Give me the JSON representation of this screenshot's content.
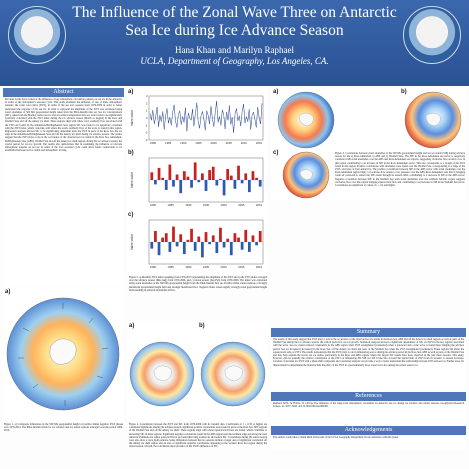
{
  "poster": {
    "title": "The Influence of the Zonal Wave Three on Antarctic Sea Ice during Ice Advance Season",
    "authors": "Hana Khan and Marilyn Raphael",
    "affiliation": "UCLA, Department of Geography, Los Angeles, CA."
  },
  "abstract": {
    "heading": "Abstract",
    "text": "Previous works have looked at the influence of key atmospheric circulation patterns on sea ice in the Antarctic in terms of the atmosphere's seasonal cycle. This study examines the influence of one of these atmospheric patterns, the zonal wave three (ZW3), in terms of the sea ice's seasons from 1979-2009 in order to better understand the response of the sea ice. In order to represent the amplitude of the ZW3 was calculated using zonal anomalies of 500 hPa geopotential height taken from the ERA-Interim data set. Sea ice concentrations (SIC), taken from the Bradley Center sea ice and sea surface temperature data set, were found to be significantly positively correlated with the ZW3 index during the ice advance season (March to August) in the Ross and Weddell Seas and off the Amery ice shelf. These regions align with where cold, southerly flow associated with the ZW3 are found. In the Amundsen-Bellingshausen Seas region SIC was found to be negatively correlated with the ZW3 index, which coincides with where the warm, northerly flow of the wave is found in this region. Regression analysis showed SIC to be significantly dependent upon the ZW3 in parts of the Ross Sea, the ice edge in the Amundsen-Bellingshausen Seas and off the Amery ice shelf during ice advance season. The results suggest that the ZW3 plays a role in the occurrence of the observed sea ice trends in the Ross Sea, Amundsen-Bellingshausen Seas (ABS), Weddell Sea and off the Amery ice shelf regions during the ice advance season, the crucial period for sea ice growth. The results also demonstrate that in examining the influence of relevant atmospheric patterns on sea ice in terms of the ice's seasonal cycle could allow future connections to be established between sea ice trends and atmospheric forcing."
  },
  "figure1": {
    "label": "a)",
    "caption": "Figure 1. a) Composite differences in the 500 hPa geopotential height of positive minus negative ZW3 phases over 1979-2014. The ERA-Interim winds for ice advance and ice retreat seasons averaged over the period 1980-2013."
  },
  "figure2": {
    "labels": [
      "a)",
      "b)",
      "c)"
    ],
    "caption": "Figure 2. a) Monthly ZW3 index spanning from 1979-2013 representing the amplitude of the ZW3 and b) the ZW3 index averaged over the advance season (Mar-Aug) from 1979-2009, and c) retreat season (Sep-Feb) from 1979-2009. The index was calculated using zonal anomalies at the 500 hPa geopotential height from the ERA-Interim data set. Positive index values indicate a strongly meridional geopotential height field and stronger meridional flow. Negative index values signify strongly zonal geopotential height field resulting in reduced meridional airflow.",
    "ylabel": "Index value"
  },
  "figure3": {
    "labels": [
      "a)",
      "b)",
      "c)"
    ],
    "caption": "Figure 3. Correlations between zonal anomalies at the 500 hPa geopotential height and sea ice extent (SIE) during advance season for the a) Ross-Amundsen b) ABS and c) Weddell Seas. The SIE in the Ross-Amundsen sea sector is negatively correlated with zonal anomalies over the ABS and Ross-Amundsen sea regions, suggesting clockwise flow around a low in this region contributing to an increase in SIE in the Ross-Amundsen sector. This also corresponds to a trough of the ZW3 found in this region. Positive correlations with anomalies were found over the Weddell Sea, corresponding to a ridge of the ZW3, and parts of East Antarctica. The positive correlations between SIE in the ABS sector with zonal anomalies over the Ross-Amundsen region imply a clockwise flow around a low pressure over the ABS-Ross-Amundsen seas that is bringing warm air poleward to reduce the SIE extent through its eastern limb, contributing to a decrease in SIE in the ABS sector. Negative correlation between SIE in the Weddell Sea with zonal anomalies over the southern Atlantic region suggests clockwise flow over this region bringing equatorward flow and contributing to an increase in SIE in the Weddell Sea sector. Correlations are significant at values of r ≥ 0.4 and higher."
  },
  "figure4": {
    "labels": [
      "a)",
      "b)"
    ],
    "caption": "Figure 4. Correlations between the ZW3 and SIC from 1979-2009 with its trended data. Coefficients of r ≥ 0.35 or higher are considered significant. During the advance season, significant positive correlations were found in parts of the Ross Sea, SIW regions of the Weddell Sea and off the Amery ice shelf. These regions align with where equatorward flows are found, which contribute to increasing SIC in these regions. Significant negative correlations found in the ABS region near the northern edge and along the west Antarctic Peninsula are where poleward flows are found that bring warmer air and reduce SIC. Correlations during the retreat season were also show a trace from patterns. Some differences between the two seasons include a larger area of significant correlation off the Amery ice shelf region and an area of significant negative correlations appearing in the western Ross Sea region during the retreat season. Overall, the correlations show presence of the ZW3's influence on SIC."
  },
  "summary": {
    "heading": "Summary",
    "text": "The results of this study suggest that ZW3 plays a role in the occurrence of the observed sea ice trends in the Ross Sea, ABS and off the Amery ice shelf regions as well as parts of the Weddell Sea during the ice advance season, the critical period for sea ice growth. Statistical analyses showed a significant dependence of SIC on ZW3 in the key regions associated with the wave. Sea ice extent reduced consistently in the ABS region when ZW3 strengthened (weakened) when a poleward arm of the wave is found there bringing the advance period. Sea ice increased (decreased) in the Ross Sea, off the Amery ice shelf and parts of the Weddell Sea when the ZW3 strengthened (weakened). These regions fall under the equatorward arms of ZW3. The results demonstrate that the ZW3 plays a role in influencing sea ice during the advance period in the Ross Sea, ABS as well as parts of the Weddell Sea and may help explain the recent sea ice trends, particularly in the Ross and ABS regions where the largest SIC trends have been observed in the past three decades. This study, however, did not quantify the relative contribution of the ZW3 on influencing SIC/SIE nor did it take into account the spatial shift of ZW3 from its western to eastern locations. Creation of an index for ZW3 with a phase shift component and correlation analysis can provide a way to better understand the relationship between ZW3 and sea ice. Further areas for improvement in determining the index include the effect of the ZW3 in a predominantly more zonal wave also during the retreat season too."
  },
  "references": {
    "heading": "References",
    "text": "Raphael, M.N., & Hobbs, W. (2014). The influence of the large-scale atmospheric circulation on Antarctic sea ice during ice advance and retreat seasons. Geophysical Research Letters, 41, 5037–5045. doi:10.1002/2014GL060365"
  },
  "acknowledgements": {
    "heading": "Acknowledgements",
    "text": "The authors would like to thank Mark Zebrowski of the UCLA Geography Department for his assistance with this poster."
  },
  "colors": {
    "header_blue": "#2f5b9f",
    "section_blue": "#4f77b8",
    "positive_red": "#c8201e",
    "negative_blue": "#2d59b3"
  },
  "chart_data": [
    {
      "type": "line",
      "title": "",
      "ylabel": "Index value",
      "x_ticks": [
        "1980",
        "1985",
        "1990",
        "1995",
        "2000",
        "2005",
        "2010",
        "2015"
      ],
      "y_ticks": [
        "3",
        "2",
        "1",
        "0",
        "-1",
        "-2",
        "-3"
      ],
      "ylim": [
        -3,
        3
      ],
      "series": [
        {
          "values": [
            0.6,
            -0.3,
            1.1,
            -0.8,
            0.2,
            1.5,
            -1.2,
            0.4,
            -0.5,
            0.9,
            -1.6,
            0.3,
            1.3,
            -0.7,
            0.1,
            -1.0,
            0.8,
            1.8,
            -0.4,
            -1.3,
            0.5,
            1.0,
            -0.9,
            0.2,
            -0.6,
            1.4,
            -1.8,
            0.7,
            0.0,
            -0.3,
            1.2,
            -1.1,
            0.6,
            2.1,
            -0.5,
            -1.4,
            0.3,
            0.9,
            -0.2,
            -1.7,
            1.0,
            0.4,
            -0.8,
            1.6,
            -0.1,
            -1.2,
            0.7,
            2.3,
            -0.6,
            0.2,
            -1.0,
            1.1,
            0.5,
            -1.5,
            0.8,
            -0.3,
            1.7,
            -0.9,
            0.1,
            -2.0,
            0.6,
            1.3,
            -0.4,
            0.3,
            -1.1,
            0.9,
            1.9,
            -0.7,
            0.2,
            -0.5,
            1.2,
            -1.6,
            0.4,
            0.8,
            -0.2,
            -1.3,
            1.5,
            0.0,
            -0.8,
            2.0
          ]
        }
      ]
    },
    {
      "type": "bar",
      "ylabel": "Index value",
      "x_ticks": [
        "1980",
        "1985",
        "1990",
        "1995",
        "2000",
        "2005",
        "2010"
      ],
      "ylim": [
        -1,
        1
      ],
      "values": [
        0.35,
        -0.2,
        0.55,
        0.1,
        -0.45,
        0.7,
        -0.3,
        0.25,
        -0.6,
        0.4,
        0.15,
        -0.35,
        0.8,
        -0.1,
        0.3,
        -0.5,
        0.45,
        0.6,
        -0.25,
        0.05,
        -0.7,
        0.5,
        0.2,
        -0.4,
        0.65,
        -0.15,
        0.3,
        -0.55,
        0.4,
        0.1,
        -0.3
      ]
    },
    {
      "type": "bar",
      "ylabel": "Index value",
      "x_ticks": [
        "1980",
        "1985",
        "1990",
        "1995",
        "2000",
        "2005",
        "2010"
      ],
      "ylim": [
        -1,
        1
      ],
      "values": [
        -0.3,
        0.5,
        -0.6,
        0.2,
        0.4,
        -0.45,
        0.7,
        -0.2,
        0.35,
        -0.55,
        0.1,
        0.6,
        -0.4,
        0.25,
        -0.7,
        0.45,
        -0.1,
        0.3,
        -0.5,
        0.65,
        -0.25,
        0.15,
        -0.6,
        0.4,
        0.2,
        -0.35,
        0.55,
        -0.45,
        0.3,
        -0.15,
        0.5
      ]
    }
  ]
}
